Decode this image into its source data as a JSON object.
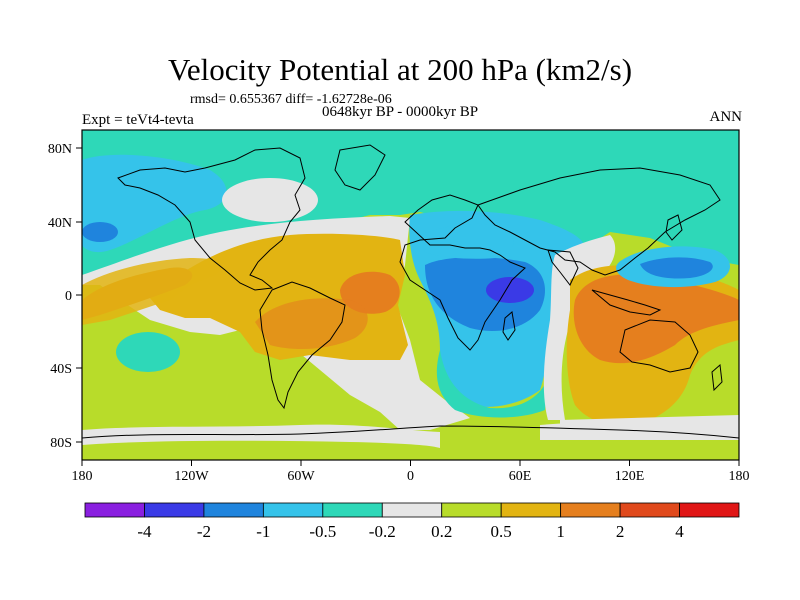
{
  "title": "Velocity Potential at 200 hPa (km2/s)",
  "rmsd_text": "rmsd= 0.655367 diff= -1.62728e-06",
  "period_text": "0648kyr BP - 0000kyr BP",
  "expt_text": "Expt = teVt4-tevta",
  "season_text": "ANN",
  "axes": {
    "lon_ticks": [
      "180",
      "120W",
      "60W",
      "0",
      "60E",
      "120E",
      "180"
    ],
    "lat_ticks": [
      "80N",
      "40N",
      "0",
      "40S",
      "80S"
    ]
  },
  "colorbar": {
    "labels": [
      "-4",
      "-2",
      "-1",
      "-0.5",
      "-0.2",
      "0.2",
      "0.5",
      "1",
      "2",
      "4"
    ],
    "colors": [
      "#8a1fe0",
      "#3a3ae6",
      "#1f84dd",
      "#35c3ea",
      "#2ed8b8",
      "#e6e6e6",
      "#b8dc2a",
      "#e2b412",
      "#e57f1e",
      "#e0491c",
      "#e01616"
    ]
  },
  "map_colors": {
    "neutral": "#e6e6e6",
    "teal": "#2ed8b8",
    "cyan": "#35c3ea",
    "blue": "#1f84dd",
    "darkblue": "#3a3ae6",
    "lime": "#b8dc2a",
    "yellow": "#e2b412",
    "orange": "#e57f1e",
    "coast": "#000000"
  }
}
